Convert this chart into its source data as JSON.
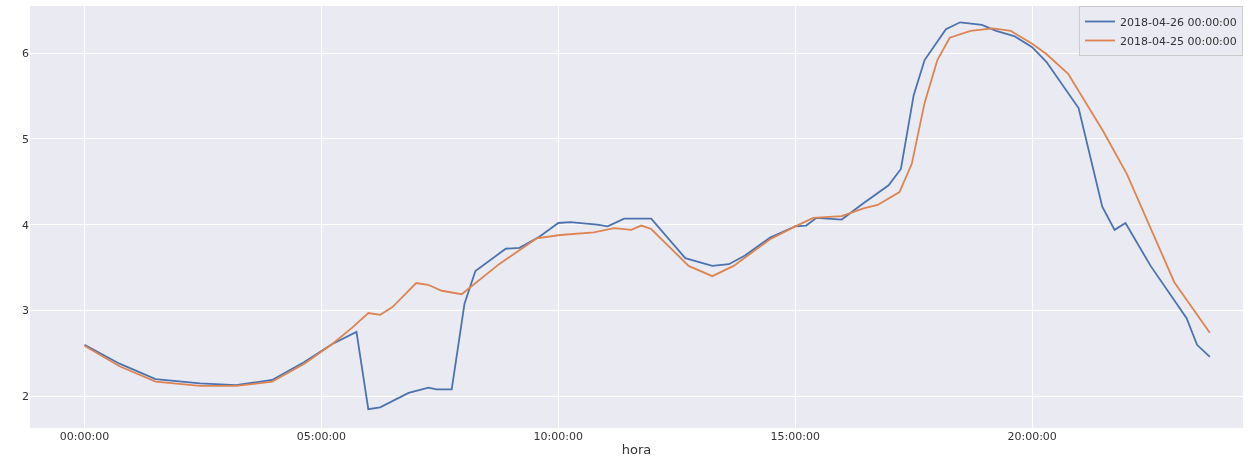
{
  "chart_data": {
    "type": "line",
    "xlabel": "hora",
    "xlim": [
      -1.15,
      24.45
    ],
    "ylim": [
      1.63,
      6.55
    ],
    "xticks": [
      {
        "value": 0,
        "label": "00:00:00"
      },
      {
        "value": 5,
        "label": "05:00:00"
      },
      {
        "value": 10,
        "label": "10:00:00"
      },
      {
        "value": 15,
        "label": "15:00:00"
      },
      {
        "value": 20,
        "label": "20:00:00"
      }
    ],
    "yticks": [
      2,
      3,
      4,
      5,
      6
    ],
    "grid": true,
    "legend": "top right",
    "marker": "none",
    "line_style": "solid",
    "series": [
      {
        "name": "2018-04-26 00:00:00",
        "color": "#4c72b0",
        "x": [
          0,
          0.74,
          1.5,
          2.44,
          3.2,
          3.96,
          4.64,
          5.23,
          5.74,
          5.99,
          6.24,
          6.84,
          7.26,
          7.43,
          7.75,
          8.02,
          8.25,
          8.89,
          9.18,
          9.6,
          10,
          10.25,
          10.82,
          11.04,
          11.39,
          11.96,
          12.68,
          13.25,
          13.6,
          13.94,
          14.47,
          15,
          15.23,
          15.45,
          15.98,
          16.44,
          16.97,
          17.23,
          17.5,
          17.73,
          18.18,
          18.48,
          18.94,
          19.24,
          19.62,
          20,
          20.3,
          20.98,
          21.48,
          21.74,
          21.97,
          22.5,
          23.26,
          23.48,
          23.75
        ],
        "values": [
          2.6,
          2.38,
          2.2,
          2.15,
          2.13,
          2.19,
          2.4,
          2.61,
          2.75,
          1.85,
          1.87,
          2.04,
          2.1,
          2.08,
          2.08,
          3.08,
          3.46,
          3.72,
          3.73,
          3.86,
          4.02,
          4.03,
          4.0,
          3.98,
          4.07,
          4.07,
          3.61,
          3.52,
          3.54,
          3.64,
          3.85,
          3.98,
          3.99,
          4.08,
          4.06,
          4.25,
          4.46,
          4.65,
          5.51,
          5.92,
          6.28,
          6.36,
          6.33,
          6.26,
          6.2,
          6.07,
          5.9,
          5.36,
          4.21,
          3.94,
          4.02,
          3.52,
          2.91,
          2.6,
          2.46
        ]
      },
      {
        "name": "2018-04-25 00:00:00",
        "color": "#dd8452",
        "x": [
          0,
          0.74,
          1.5,
          2.44,
          3.2,
          3.96,
          4.64,
          5.23,
          5.65,
          5.99,
          6.24,
          6.5,
          7.0,
          7.25,
          7.54,
          7.96,
          8.75,
          9.54,
          10.04,
          10.75,
          11.18,
          11.54,
          11.75,
          11.96,
          12.75,
          13.25,
          13.7,
          14.47,
          15,
          15.38,
          15.98,
          16.44,
          16.74,
          17.2,
          17.46,
          17.73,
          18.0,
          18.26,
          18.7,
          19.17,
          19.55,
          20,
          20.3,
          20.76,
          21.5,
          22.0,
          23.0,
          23.75
        ],
        "values": [
          2.59,
          2.35,
          2.17,
          2.12,
          2.12,
          2.17,
          2.38,
          2.61,
          2.8,
          2.97,
          2.95,
          3.04,
          3.32,
          3.3,
          3.23,
          3.19,
          3.54,
          3.84,
          3.88,
          3.91,
          3.96,
          3.94,
          3.99,
          3.95,
          3.52,
          3.4,
          3.52,
          3.83,
          3.98,
          4.08,
          4.1,
          4.19,
          4.23,
          4.38,
          4.71,
          5.42,
          5.92,
          6.18,
          6.26,
          6.29,
          6.26,
          6.11,
          5.99,
          5.76,
          5.09,
          4.59,
          3.33,
          2.74
        ]
      }
    ]
  }
}
